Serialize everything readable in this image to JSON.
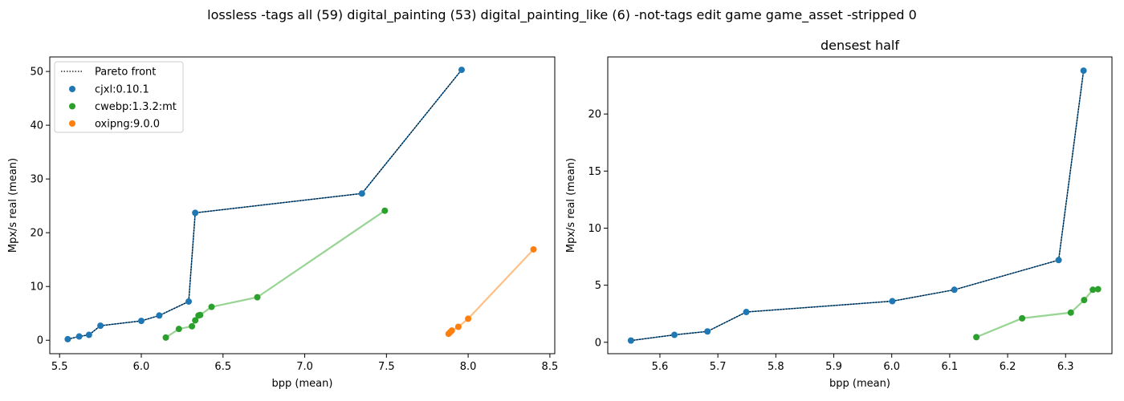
{
  "suptitle": "lossless -tags all (59) digital_painting (53) digital_painting_like (6) -not-tags edit game game_asset -stripped 0",
  "chart_data": [
    {
      "type": "scatter",
      "title": "",
      "xlabel": "bpp (mean)",
      "ylabel": "Mpx/s real (mean)",
      "xlim": [
        5.44,
        8.53
      ],
      "ylim": [
        -2.5,
        52.7
      ],
      "xticks": [
        "5.5",
        "6.0",
        "6.5",
        "7.0",
        "7.5",
        "8.0",
        "8.5"
      ],
      "yticks": [
        "0",
        "10",
        "20",
        "30",
        "40",
        "50"
      ],
      "legend": {
        "placement": "top-left",
        "pareto_label": "Pareto front"
      },
      "pareto": [
        [
          5.55,
          0.2
        ],
        [
          5.62,
          0.7
        ],
        [
          5.68,
          1.0
        ],
        [
          5.75,
          2.7
        ],
        [
          6.0,
          3.6
        ],
        [
          6.11,
          4.6
        ],
        [
          6.29,
          7.2
        ],
        [
          6.33,
          23.7
        ],
        [
          7.35,
          27.3
        ],
        [
          7.96,
          50.3
        ]
      ],
      "series": [
        {
          "name": "cjxl:0.10.1",
          "color": "#1f77b4",
          "line_color": "#1f77b4",
          "points": [
            [
              5.55,
              0.2
            ],
            [
              5.62,
              0.7
            ],
            [
              5.68,
              1.0
            ],
            [
              5.75,
              2.7
            ],
            [
              6.0,
              3.6
            ],
            [
              6.11,
              4.6
            ],
            [
              6.29,
              7.2
            ],
            [
              6.33,
              23.7
            ],
            [
              7.35,
              27.3
            ],
            [
              7.96,
              50.3
            ]
          ]
        },
        {
          "name": "cwebp:1.3.2:mt",
          "color": "#2ca02c",
          "line_color": "#98d494",
          "points": [
            [
              6.15,
              0.5
            ],
            [
              6.23,
              2.1
            ],
            [
              6.31,
              2.6
            ],
            [
              6.33,
              3.7
            ],
            [
              6.35,
              4.6
            ],
            [
              6.36,
              4.7
            ],
            [
              6.43,
              6.2
            ],
            [
              6.71,
              8.0
            ],
            [
              7.49,
              24.1
            ]
          ]
        },
        {
          "name": "oxipng:9.0.0",
          "color": "#ff7f0e",
          "line_color": "#ffbf86",
          "points": [
            [
              7.88,
              1.2
            ],
            [
              7.89,
              1.5
            ],
            [
              7.9,
              1.8
            ],
            [
              7.94,
              2.5
            ],
            [
              8.0,
              4.0
            ],
            [
              8.4,
              16.9
            ]
          ]
        }
      ]
    },
    {
      "type": "scatter",
      "title": "densest half",
      "xlabel": "bpp (mean)",
      "ylabel": "Mpx/s real (mean)",
      "xlim": [
        5.51,
        6.38
      ],
      "ylim": [
        -1.0,
        25.0
      ],
      "xticks": [
        "5.6",
        "5.7",
        "5.8",
        "5.9",
        "6.0",
        "6.1",
        "6.2",
        "6.3"
      ],
      "yticks": [
        "0",
        "5",
        "10",
        "15",
        "20"
      ],
      "pareto": [
        [
          5.55,
          0.15
        ],
        [
          5.625,
          0.65
        ],
        [
          5.682,
          0.95
        ],
        [
          5.749,
          2.65
        ],
        [
          6.001,
          3.6
        ],
        [
          6.108,
          4.6
        ],
        [
          6.288,
          7.2
        ],
        [
          6.331,
          23.8
        ]
      ],
      "series": [
        {
          "name": "cjxl:0.10.1",
          "color": "#1f77b4",
          "line_color": "#1f77b4",
          "points": [
            [
              5.55,
              0.15
            ],
            [
              5.625,
              0.65
            ],
            [
              5.682,
              0.95
            ],
            [
              5.749,
              2.65
            ],
            [
              6.001,
              3.6
            ],
            [
              6.108,
              4.6
            ],
            [
              6.288,
              7.2
            ],
            [
              6.331,
              23.8
            ]
          ]
        },
        {
          "name": "cwebp:1.3.2:mt",
          "color": "#2ca02c",
          "line_color": "#98d494",
          "points": [
            [
              6.146,
              0.45
            ],
            [
              6.225,
              2.1
            ],
            [
              6.309,
              2.6
            ],
            [
              6.332,
              3.7
            ],
            [
              6.347,
              4.6
            ],
            [
              6.356,
              4.65
            ]
          ]
        }
      ]
    }
  ]
}
